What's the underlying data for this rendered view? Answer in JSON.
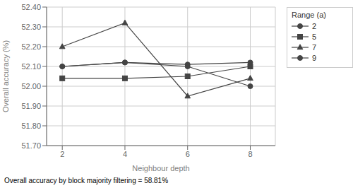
{
  "chart_data": {
    "type": "line",
    "x": [
      2,
      4,
      6,
      8
    ],
    "series": [
      {
        "name": "2",
        "color": "#444444",
        "marker": "circle",
        "values": [
          52.1,
          52.12,
          52.11,
          52.12
        ]
      },
      {
        "name": "5",
        "color": "#444444",
        "marker": "square",
        "values": [
          52.04,
          52.04,
          52.05,
          52.1
        ]
      },
      {
        "name": "7",
        "color": "#444444",
        "marker": "triangle",
        "values": [
          52.2,
          52.32,
          51.95,
          52.04
        ]
      },
      {
        "name": "9",
        "color": "#444444",
        "marker": "circle",
        "values": [
          52.1,
          52.12,
          52.1,
          52.0
        ]
      }
    ],
    "xlabel": "Neighbour depth",
    "ylabel": "Overall accuracy (%)",
    "xlim": [
      1.5,
      8.8
    ],
    "xticks": [
      2,
      4,
      6,
      8
    ],
    "ylim": [
      51.7,
      52.4
    ],
    "yticks": [
      {
        "value": 51.7,
        "label": "51.70"
      },
      {
        "value": 51.8,
        "label": "51.80"
      },
      {
        "value": 51.9,
        "label": "51.90"
      },
      {
        "value": 52.0,
        "label": "52.00"
      },
      {
        "value": 52.1,
        "label": "52.10"
      },
      {
        "value": 52.2,
        "label": "52.20"
      },
      {
        "value": 52.3,
        "label": "52.30"
      },
      {
        "value": 52.4,
        "label": "52.40"
      }
    ],
    "grid": true,
    "legend": "right",
    "legend_title": "Range (a)",
    "annotation": "Overall accuracy by block majority filtering = 58.81%"
  }
}
